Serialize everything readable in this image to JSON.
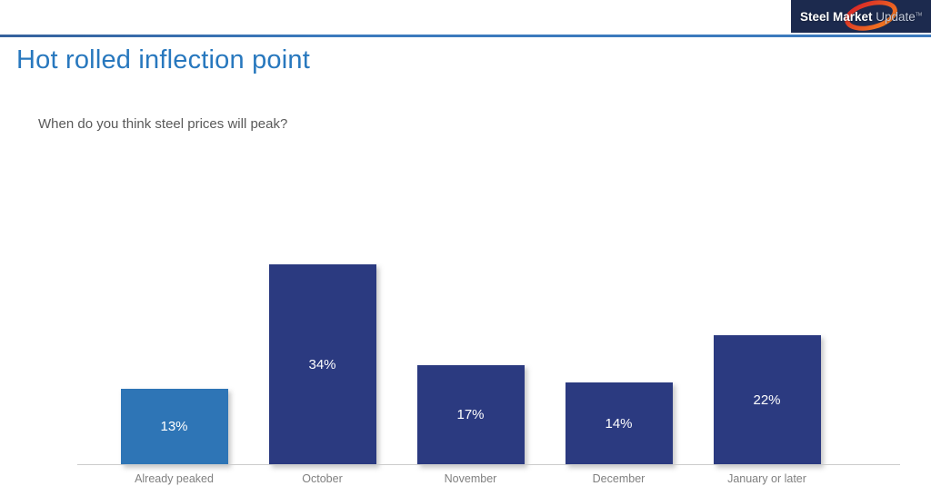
{
  "header": {
    "logo": {
      "text_bold": "Steel Market",
      "text_light": "Update",
      "tm": "TM"
    }
  },
  "title": "Hot rolled inflection point",
  "question": "When do you think steel prices will peak?",
  "colors": {
    "title_blue": "#2878be",
    "divider_blue": "#3b7abd",
    "logo_bg": "#1c2a4e",
    "swoosh_red": "#d62027",
    "swoosh_orange": "#f58220",
    "bar_highlight": "#2e75b6",
    "bar_navy": "#2b3a80",
    "axis_line": "#cccccc",
    "label_gray": "#808080"
  },
  "chart_data": {
    "type": "bar",
    "title": "",
    "xlabel": "",
    "ylabel": "",
    "categories": [
      "Already peaked",
      "October",
      "November",
      "December",
      "January or later"
    ],
    "values": [
      13,
      34,
      17,
      14,
      22
    ],
    "value_labels": [
      "13%",
      "34%",
      "17%",
      "14%",
      "22%"
    ],
    "bar_colors": [
      "#2e75b6",
      "#2b3a80",
      "#2b3a80",
      "#2b3a80",
      "#2b3a80"
    ],
    "ylim": [
      0,
      40
    ],
    "grid": false,
    "legend": false,
    "value_label_position": "inside-center"
  }
}
